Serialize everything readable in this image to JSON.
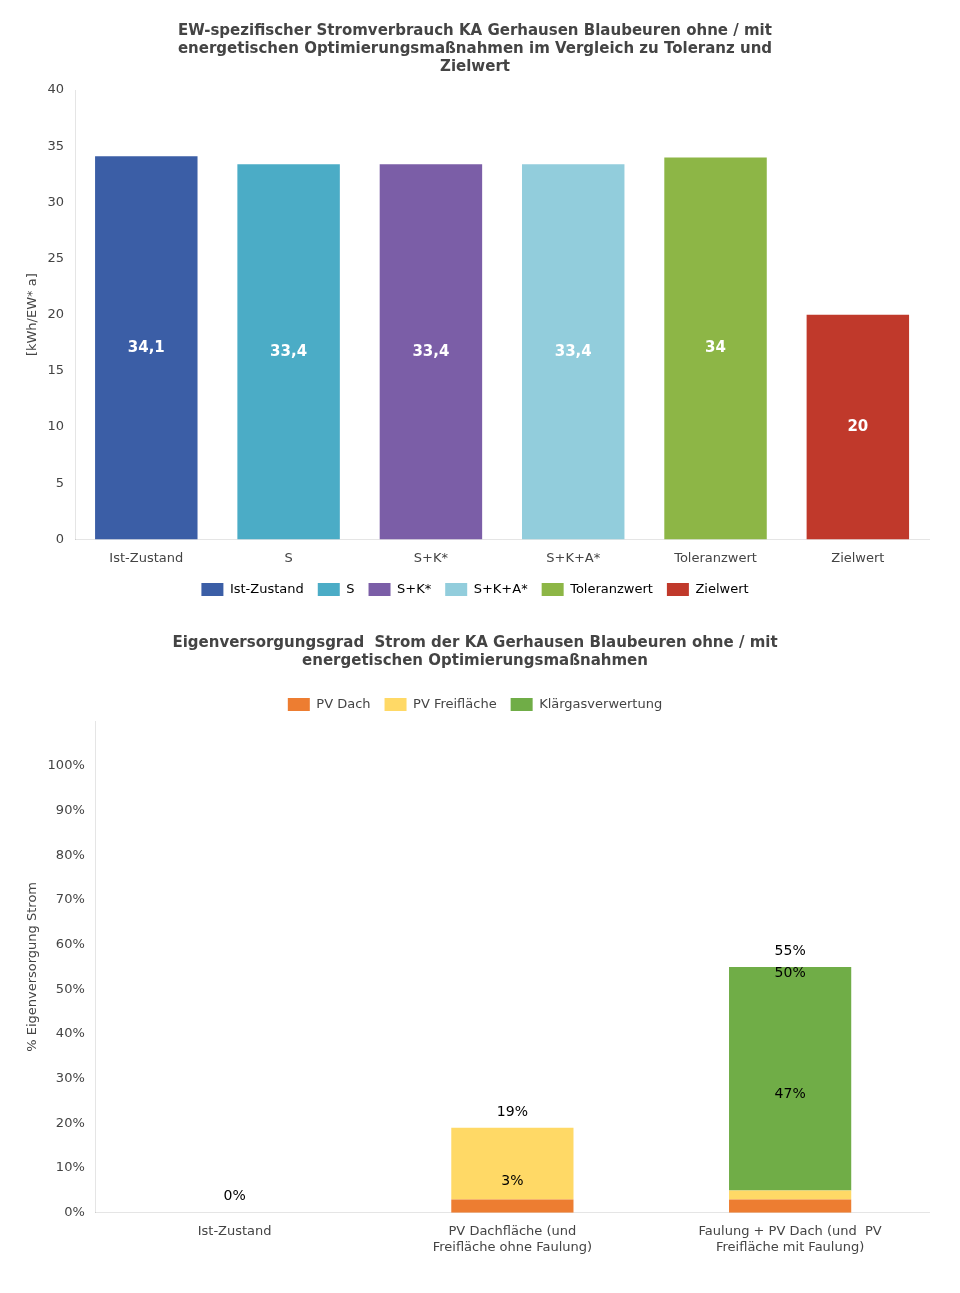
{
  "chart_data": [
    {
      "type": "bar",
      "title": "EW-spezifischer Stromverbrauch KA Gerhausen Blaubeuren ohne / mit\nenergetischen Optimierungsmaßnahmen im Vergleich zu Toleranz und\nZielwert",
      "categories": [
        "Ist-Zustand",
        "S",
        "S+K*",
        "S+K+A*",
        "Toleranzwert",
        "Zielwert"
      ],
      "values": [
        34.1,
        33.4,
        33.4,
        33.4,
        34.0,
        20.0
      ],
      "value_labels": [
        "34,1",
        "33,4",
        "33,4",
        "33,4",
        "34",
        "20"
      ],
      "data_labels": true,
      "colors": [
        "#3b5ea6",
        "#4bacc6",
        "#7b5ea7",
        "#92cddc",
        "#8db646",
        "#c0392b"
      ],
      "ylabel": "[kWh/EW* a]",
      "ylim": [
        0,
        40
      ],
      "yticks": [
        0,
        5,
        10,
        15,
        20,
        25,
        30,
        35,
        40
      ],
      "grid": false,
      "legend": "bottom"
    },
    {
      "type": "bar",
      "stacked": true,
      "title": "Eigenversorgungsgrad  Strom der KA Gerhausen Blaubeuren ohne / mit\nenergetischen Optimierungsmaßnahmen",
      "categories": [
        "Ist-Zustand",
        "PV Dachfläche (und\nFreifläche ohne Faulung)",
        "Faulung + PV Dach (und  PV\nFreifläche mit Faulung)"
      ],
      "series": [
        {
          "name": "PV Dach",
          "color": "#ed7d31",
          "values": [
            0,
            3,
            3
          ]
        },
        {
          "name": "PV Freifläche",
          "color": "#ffd966",
          "values": [
            0,
            16,
            2
          ]
        },
        {
          "name": "Klärgasverwertung",
          "color": "#70ad47",
          "values": [
            0,
            0,
            50
          ]
        }
      ],
      "ylabel": "% Eigenversorgung Strom",
      "ylim": [
        0,
        110
      ],
      "yticks": [
        {
          "value": 0,
          "label": "0%"
        },
        {
          "value": 10,
          "label": "10%"
        },
        {
          "value": 20,
          "label": "20%"
        },
        {
          "value": 30,
          "label": "30%"
        },
        {
          "value": 40,
          "label": "40%"
        },
        {
          "value": 50,
          "label": "50%"
        },
        {
          "value": 60,
          "label": "60%"
        },
        {
          "value": 70,
          "label": "70%"
        },
        {
          "value": 80,
          "label": "80%"
        },
        {
          "value": 90,
          "label": "90%"
        },
        {
          "value": 100,
          "label": "100%"
        }
      ],
      "grid": false,
      "legend": "top",
      "annotations": [
        {
          "x": "Ist-Zustand",
          "y": 2,
          "text": "0%"
        },
        {
          "x": "PV Dachfläche (und\nFreifläche ohne Faulung)",
          "y": 21,
          "text": "19%"
        },
        {
          "x": "PV Dachfläche (und\nFreifläche ohne Faulung)",
          "y": 5.5,
          "text": "3%"
        },
        {
          "x": "Faulung + PV Dach (und  PV\nFreifläche mit Faulung)",
          "y": 57,
          "text": "55%"
        },
        {
          "x": "Faulung + PV Dach (und  PV\nFreifläche mit Faulung)",
          "y": 25,
          "text": "47%"
        },
        {
          "x": "Faulung + PV Dach (und  PV\nFreifläche mit Faulung)",
          "y": 52,
          "text": "50%"
        }
      ]
    }
  ]
}
